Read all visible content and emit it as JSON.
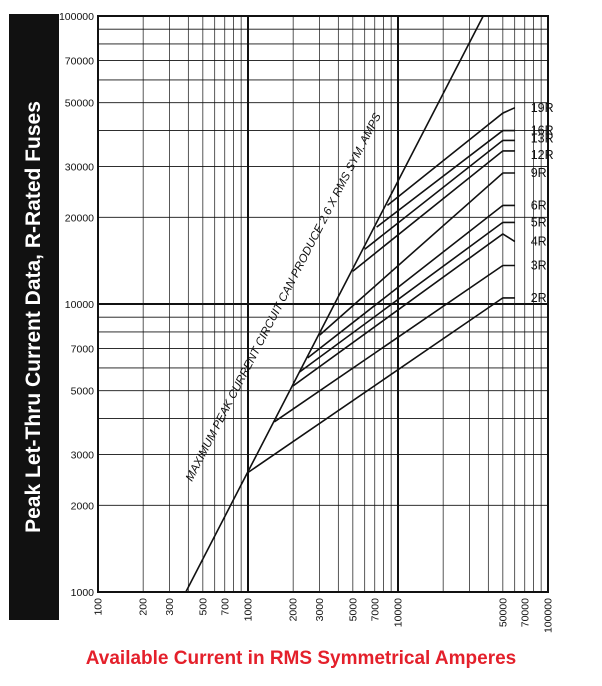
{
  "chart_data": {
    "type": "line",
    "title": "Peak Let-Thru Current Data,   R-Rated Fuses",
    "xlabel": "Available Current in RMS Symmetrical Amperes",
    "ylabel": "Peak Let-Thru Current Data,   R-Rated Fuses",
    "x_scale": "log",
    "y_scale": "log",
    "xlim": [
      100,
      100000
    ],
    "ylim": [
      1000,
      100000
    ],
    "x_tick_labels": [
      {
        "value": 100,
        "label": "100"
      },
      {
        "value": 200,
        "label": "200"
      },
      {
        "value": 300,
        "label": "300"
      },
      {
        "value": 500,
        "label": "500"
      },
      {
        "value": 700,
        "label": "700"
      },
      {
        "value": 1000,
        "label": "1000"
      },
      {
        "value": 2000,
        "label": "2000"
      },
      {
        "value": 3000,
        "label": "3000"
      },
      {
        "value": 5000,
        "label": "5000"
      },
      {
        "value": 7000,
        "label": "7000"
      },
      {
        "value": 10000,
        "label": "10000"
      },
      {
        "value": 50000,
        "label": "50000"
      },
      {
        "value": 70000,
        "label": "70000"
      },
      {
        "value": 100000,
        "label": "100000"
      }
    ],
    "y_tick_labels": [
      {
        "value": 1000,
        "label": "1000"
      },
      {
        "value": 2000,
        "label": "2000"
      },
      {
        "value": 3000,
        "label": "3000"
      },
      {
        "value": 5000,
        "label": "5000"
      },
      {
        "value": 7000,
        "label": "7000"
      },
      {
        "value": 10000,
        "label": "10000"
      },
      {
        "value": 20000,
        "label": "20000"
      },
      {
        "value": 30000,
        "label": "30000"
      },
      {
        "value": 50000,
        "label": "50000"
      },
      {
        "value": 70000,
        "label": "70000"
      },
      {
        "value": 100000,
        "label": "100000"
      }
    ],
    "grid": true,
    "max_line": {
      "x": [
        385,
        37000
      ],
      "y": [
        1000,
        100000
      ],
      "annotation": "MAXIMUM PEAK CURRENT CIRCUIT CAN PRODUCE 2.6 X RMS SYM. AMPS"
    },
    "series": [
      {
        "name": "2R",
        "x": [
          1000,
          50000,
          60000
        ],
        "y": [
          2600,
          10500,
          10500
        ]
      },
      {
        "name": "3R",
        "x": [
          1500,
          50000,
          60000
        ],
        "y": [
          3900,
          13600,
          13600
        ]
      },
      {
        "name": "4R",
        "x": [
          2000,
          50000,
          60000
        ],
        "y": [
          5200,
          17500,
          16500
        ]
      },
      {
        "name": "5R",
        "x": [
          2200,
          50000,
          60000
        ],
        "y": [
          5800,
          19200,
          19200
        ]
      },
      {
        "name": "6R",
        "x": [
          2500,
          50000,
          60000
        ],
        "y": [
          6500,
          22000,
          22000
        ]
      },
      {
        "name": "9R",
        "x": [
          3000,
          50000,
          60000
        ],
        "y": [
          7800,
          28500,
          28500
        ]
      },
      {
        "name": "12R",
        "x": [
          5000,
          50000,
          60000
        ],
        "y": [
          13000,
          34000,
          34000
        ]
      },
      {
        "name": "13R",
        "x": [
          6000,
          50000,
          60000
        ],
        "y": [
          15500,
          37000,
          37000
        ]
      },
      {
        "name": "16R",
        "x": [
          7200,
          50000,
          60000
        ],
        "y": [
          18500,
          40000,
          40000
        ]
      },
      {
        "name": "19R",
        "x": [
          8500,
          50000,
          60000
        ],
        "y": [
          22000,
          46000,
          48000
        ]
      }
    ]
  }
}
